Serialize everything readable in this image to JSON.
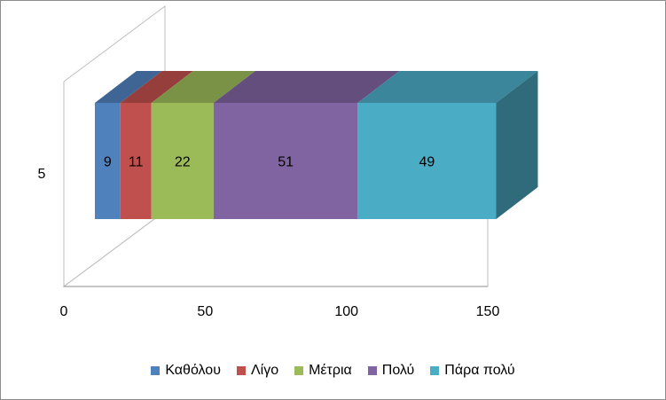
{
  "chart_data": {
    "type": "bar",
    "orientation": "horizontal",
    "stacked": true,
    "three_d": true,
    "categories": [
      "5"
    ],
    "xlim": [
      0,
      150
    ],
    "x_ticks": [
      "0",
      "50",
      "100",
      "150"
    ],
    "series": [
      {
        "name": "Καθόλου",
        "values": [
          9
        ],
        "color": "#4f81bd"
      },
      {
        "name": "Λίγο",
        "values": [
          11
        ],
        "color": "#c0504d"
      },
      {
        "name": "Μέτρια",
        "values": [
          22
        ],
        "color": "#9bbb59"
      },
      {
        "name": "Πολύ",
        "values": [
          51
        ],
        "color": "#8064a2"
      },
      {
        "name": "Πάρα πολύ",
        "values": [
          49
        ],
        "color": "#4bacc6"
      }
    ],
    "data_labels": [
      "9",
      "11",
      "22",
      "51",
      "49"
    ],
    "legend": "bottom",
    "grid": false
  }
}
